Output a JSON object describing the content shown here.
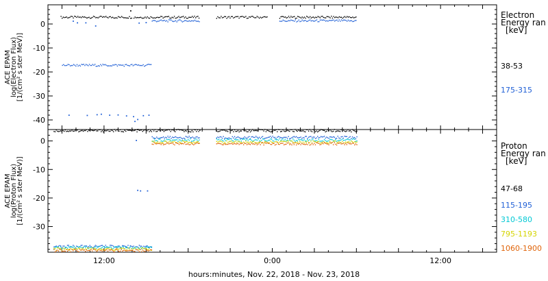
{
  "x_axis": {
    "label": "hours:minutes, Nov. 22, 2018 - Nov. 23, 2018",
    "ticks": [
      {
        "hour": 12,
        "label": "12:00"
      },
      {
        "hour": 24,
        "label": "0:00"
      },
      {
        "hour": 36,
        "label": "12:00"
      }
    ],
    "range_hours": [
      8,
      40
    ]
  },
  "chart_data": [
    {
      "type": "scatter",
      "name": "electron-panel",
      "ylabel": [
        "ACE EPAM",
        "log(Electron Flux)",
        "[1/(cm² s ster MeV)]"
      ],
      "ylim": [
        -44,
        8
      ],
      "yticks": [
        0,
        -10,
        -20,
        -30,
        -40
      ],
      "legend": {
        "title": [
          "Electron",
          "Energy ran",
          "[keV]"
        ],
        "placement": "right"
      },
      "series": [
        {
          "name": "38-53",
          "color": "#000000",
          "segments": [
            {
              "x": [
                8.9,
                14.0
              ],
              "y": 2.8
            },
            {
              "x": [
                14.1,
                18.8
              ],
              "y": 2.8
            },
            {
              "x": [
                20.0,
                23.6
              ],
              "y": 2.8
            },
            {
              "x": [
                24.5,
                30.0
              ],
              "y": 2.8
            }
          ],
          "points": [
            [
              13.9,
              5.5
            ]
          ]
        },
        {
          "name": "175-315",
          "color": "#1f5fd6",
          "segments": [
            {
              "x": [
                15.4,
                18.8
              ],
              "y": 1.3
            },
            {
              "x": [
                24.5,
                30.0
              ],
              "y": 1.3
            },
            {
              "x": [
                9.0,
                15.4
              ],
              "y": -17.2
            }
          ],
          "points": [
            [
              9.8,
              1.2
            ],
            [
              10.1,
              0.5
            ],
            [
              10.7,
              0.5
            ],
            [
              11.4,
              -0.8
            ],
            [
              14.5,
              0.4
            ],
            [
              15.0,
              0.6
            ],
            [
              9.5,
              -38.0
            ],
            [
              10.8,
              -38.1
            ],
            [
              11.5,
              -37.8
            ],
            [
              12.4,
              -38.0
            ],
            [
              13.0,
              -37.9
            ],
            [
              13.6,
              -38.3
            ],
            [
              14.1,
              -38.6
            ],
            [
              14.4,
              -39.8
            ],
            [
              14.8,
              -38.2
            ],
            [
              15.2,
              -38.0
            ],
            [
              14.2,
              -40.6
            ],
            [
              11.8,
              -37.6
            ]
          ]
        }
      ]
    },
    {
      "type": "scatter",
      "name": "proton-panel",
      "ylabel": [
        "ACE EPAM",
        "log(Proton Flux)",
        "[1/(cm² s ster MeV)]"
      ],
      "ylim": [
        -39,
        4
      ],
      "yticks": [
        0,
        -10,
        -20,
        -30
      ],
      "legend": {
        "title": [
          "Proton",
          "Energy ran",
          "[keV]"
        ],
        "placement": "right"
      },
      "series": [
        {
          "name": "47-68",
          "color": "#000000",
          "segments": [
            {
              "x": [
                8.4,
                18.8
              ],
              "y": 3.6
            },
            {
              "x": [
                20.0,
                30.0
              ],
              "y": 3.6
            }
          ],
          "points": [
            [
              14.4,
              4.0
            ]
          ]
        },
        {
          "name": "115-195",
          "color": "#1f5fd6",
          "segments": [
            {
              "x": [
                15.4,
                18.8
              ],
              "y": 1.2
            },
            {
              "x": [
                20.0,
                30.0
              ],
              "y": 1.2
            },
            {
              "x": [
                8.4,
                15.4
              ],
              "y": -37.0
            }
          ],
          "points": [
            [
              14.4,
              -17.3
            ],
            [
              14.6,
              -17.5
            ],
            [
              15.1,
              -17.5
            ],
            [
              14.3,
              0.2
            ]
          ]
        },
        {
          "name": "310-580",
          "color": "#00c8d4",
          "segments": [
            {
              "x": [
                15.4,
                18.8
              ],
              "y": 0.3
            },
            {
              "x": [
                20.0,
                30.0
              ],
              "y": 0.3
            },
            {
              "x": [
                8.4,
                15.4
              ],
              "y": -37.4
            }
          ],
          "points": []
        },
        {
          "name": "795-1193",
          "color": "#d4d400",
          "segments": [
            {
              "x": [
                15.4,
                18.8
              ],
              "y": -0.4
            },
            {
              "x": [
                20.0,
                30.0
              ],
              "y": -0.4
            },
            {
              "x": [
                8.4,
                15.4
              ],
              "y": -37.9
            }
          ],
          "points": []
        },
        {
          "name": "1060-1900",
          "color": "#e0640a",
          "segments": [
            {
              "x": [
                15.4,
                18.8
              ],
              "y": -1.0
            },
            {
              "x": [
                20.0,
                30.0
              ],
              "y": -1.0
            },
            {
              "x": [
                8.4,
                15.4
              ],
              "y": -38.4
            }
          ],
          "points": []
        }
      ]
    }
  ]
}
